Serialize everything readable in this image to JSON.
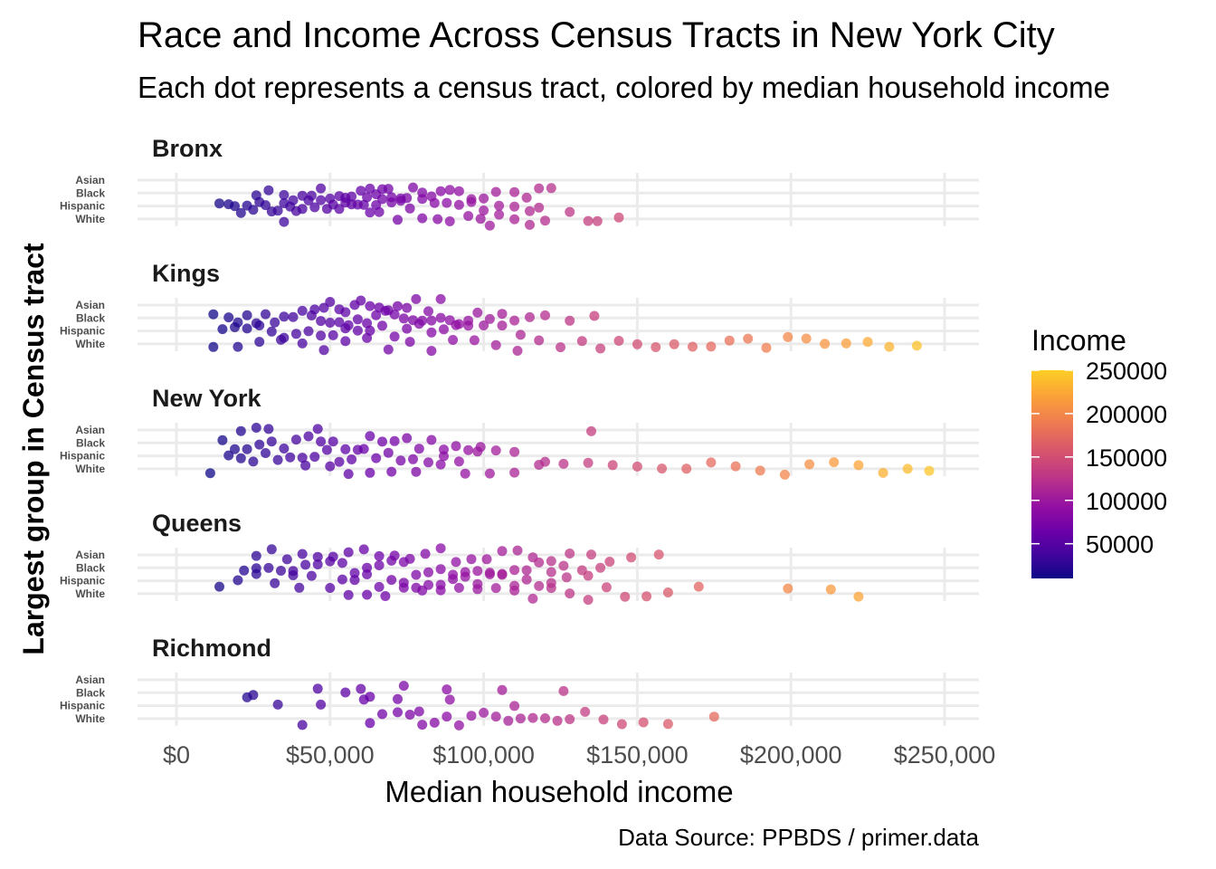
{
  "chart_data": {
    "type": "scatter",
    "title": "Race and Income Across Census Tracts in New York City",
    "subtitle": "Each dot represents a census tract, colored by median household income",
    "xlabel": "Median household income",
    "ylabel": "Largest group in Census tract",
    "caption": "Data Source: PPBDS / primer.data",
    "xlim": [
      -10000,
      262000
    ],
    "x_ticks": [
      0,
      50000,
      100000,
      150000,
      200000,
      250000
    ],
    "x_tick_labels": [
      "$0",
      "$50,000",
      "$100,000",
      "$150,000",
      "$200,000",
      "$250,000"
    ],
    "y_categories": [
      "Asian",
      "Black",
      "Hispanic",
      "White"
    ],
    "facets": [
      {
        "name": "Bronx",
        "groups": {
          "Asian": [],
          "Black": [
            26000,
            30000,
            35000,
            38000,
            41000,
            44000,
            47000,
            50000,
            53000,
            55000,
            57000,
            60000,
            62000,
            63000,
            65000,
            67000,
            69000,
            70000,
            73000,
            75000,
            77000,
            80000,
            83000,
            86000,
            89000,
            92000,
            96000,
            100000,
            104000,
            110000,
            114000,
            118000,
            122000
          ],
          "Hispanic": [
            14000,
            17000,
            19000,
            21000,
            23000,
            25000,
            27000,
            29000,
            31000,
            33000,
            35000,
            37000,
            39000,
            41000,
            43000,
            45000,
            47000,
            49000,
            51000,
            53000,
            55000,
            57000,
            59000,
            61000,
            63000,
            65000,
            67000,
            70000,
            73000,
            76000,
            80000,
            84000,
            88000,
            92000,
            96000,
            100000,
            105000,
            110000,
            115000,
            118000
          ],
          "White": [
            35000,
            66000,
            72000,
            80000,
            85000,
            89000,
            95000,
            99000,
            102000,
            105000,
            110000,
            115000,
            120000,
            128000,
            134000,
            137000,
            144000
          ]
        }
      },
      {
        "name": "Kings",
        "groups": {
          "Asian": [
            45000,
            48000,
            50000,
            53000,
            55000,
            58000,
            60000,
            63000,
            66000,
            69000,
            72000,
            75000,
            78000,
            82000,
            86000
          ],
          "Black": [
            12000,
            17000,
            20000,
            23000,
            26000,
            29000,
            32000,
            35000,
            38000,
            41000,
            44000,
            47000,
            50000,
            53000,
            56000,
            59000,
            62000,
            65000,
            68000,
            71000,
            74000,
            77000,
            80000,
            83000,
            86000,
            89000,
            92000,
            95000,
            98000,
            102000,
            106000,
            110000,
            115000,
            120000,
            128000,
            136000
          ],
          "Hispanic": [
            15000,
            19000,
            23000,
            27000,
            31000,
            35000,
            39000,
            43000,
            47000,
            51000,
            55000,
            59000,
            63000,
            67000,
            71000,
            75000,
            79000,
            83000,
            87000,
            91000,
            95000,
            100000,
            106000,
            112000
          ],
          "White": [
            12000,
            20000,
            27000,
            34000,
            41000,
            48000,
            55000,
            62000,
            69000,
            76000,
            83000,
            90000,
            97000,
            104000,
            111000,
            118000,
            125000,
            132000,
            138000,
            144000,
            150000,
            156000,
            162000,
            168000,
            174000,
            180000,
            186000,
            192000,
            199000,
            205000,
            211000,
            218000,
            225000,
            232000,
            241000
          ]
        }
      },
      {
        "name": "New York",
        "groups": {
          "Asian": [
            21000,
            26000,
            30000,
            46000,
            135000
          ],
          "Black": [
            15000,
            19000,
            23000,
            27000,
            31000,
            35000,
            39000,
            43000,
            47000,
            51000,
            55000,
            59000,
            63000,
            67000,
            71000,
            75000,
            79000,
            83000,
            87000,
            91000,
            95000,
            99000
          ],
          "Hispanic": [
            17000,
            21000,
            25000,
            29000,
            33000,
            37000,
            41000,
            45000,
            49000,
            53000,
            57000,
            61000,
            65000,
            69000,
            73000,
            77000,
            82000,
            87000,
            92000,
            98000,
            104000,
            110000,
            120000
          ],
          "White": [
            11000,
            42000,
            50000,
            56000,
            63000,
            70000,
            78000,
            86000,
            94000,
            102000,
            110000,
            118000,
            126000,
            134000,
            142000,
            150000,
            158000,
            166000,
            174000,
            182000,
            190000,
            198000,
            206000,
            214000,
            222000,
            230000,
            238000,
            245000
          ]
        }
      },
      {
        "name": "Queens",
        "groups": {
          "Asian": [
            26000,
            31000,
            36000,
            41000,
            46000,
            51000,
            56000,
            61000,
            66000,
            71000,
            76000,
            81000,
            86000,
            91000,
            96000,
            101000,
            106000,
            111000,
            116000,
            122000,
            128000,
            135000,
            141000,
            148000,
            157000
          ],
          "Black": [
            22000,
            26000,
            30000,
            34000,
            38000,
            42000,
            46000,
            50000,
            54000,
            58000,
            62000,
            66000,
            70000,
            74000,
            78000,
            82000,
            86000,
            90000,
            94000,
            98000,
            102000,
            106000,
            110000,
            114000,
            118000,
            122000,
            126000,
            132000,
            138000
          ],
          "Hispanic": [
            14000,
            20000,
            26000,
            32000,
            38000,
            44000,
            50000,
            54000,
            58000,
            62000,
            66000,
            70000,
            74000,
            78000,
            82000,
            86000,
            90000,
            94000,
            98000,
            102000,
            106000,
            110000,
            114000,
            118000,
            122000,
            127000,
            134000
          ],
          "White": [
            40000,
            56000,
            62000,
            68000,
            74000,
            80000,
            86000,
            92000,
            98000,
            104000,
            110000,
            116000,
            122000,
            128000,
            134000,
            140000,
            146000,
            153000,
            160000,
            170000,
            199000,
            213000,
            222000
          ]
        }
      },
      {
        "name": "Richmond",
        "groups": {
          "Asian": [],
          "Black": [
            23000,
            25000,
            46000,
            55000,
            60000,
            63000,
            74000,
            88000,
            106000,
            126000
          ],
          "Hispanic": [
            33000,
            47000,
            61000,
            72000,
            79000,
            89000,
            110000
          ],
          "White": [
            41000,
            63000,
            67000,
            72000,
            76000,
            80000,
            84000,
            88000,
            92000,
            96000,
            100000,
            104000,
            108000,
            112000,
            116000,
            120000,
            124000,
            128000,
            133000,
            139000,
            145000,
            152000,
            160000,
            175000
          ]
        }
      }
    ],
    "legend": {
      "title": "Income",
      "position": "right",
      "breaks": [
        50000,
        100000,
        150000,
        200000,
        250000
      ],
      "break_labels": [
        "50000",
        "100000",
        "150000",
        "200000",
        "250000"
      ],
      "min": 10000,
      "max": 250000,
      "colors": [
        "#0d0887",
        "#41049d",
        "#6a00a8",
        "#8f0da4",
        "#b12a90",
        "#cc4778",
        "#e16462",
        "#f2844b",
        "#fca636",
        "#fcce25"
      ]
    },
    "grid": true
  }
}
